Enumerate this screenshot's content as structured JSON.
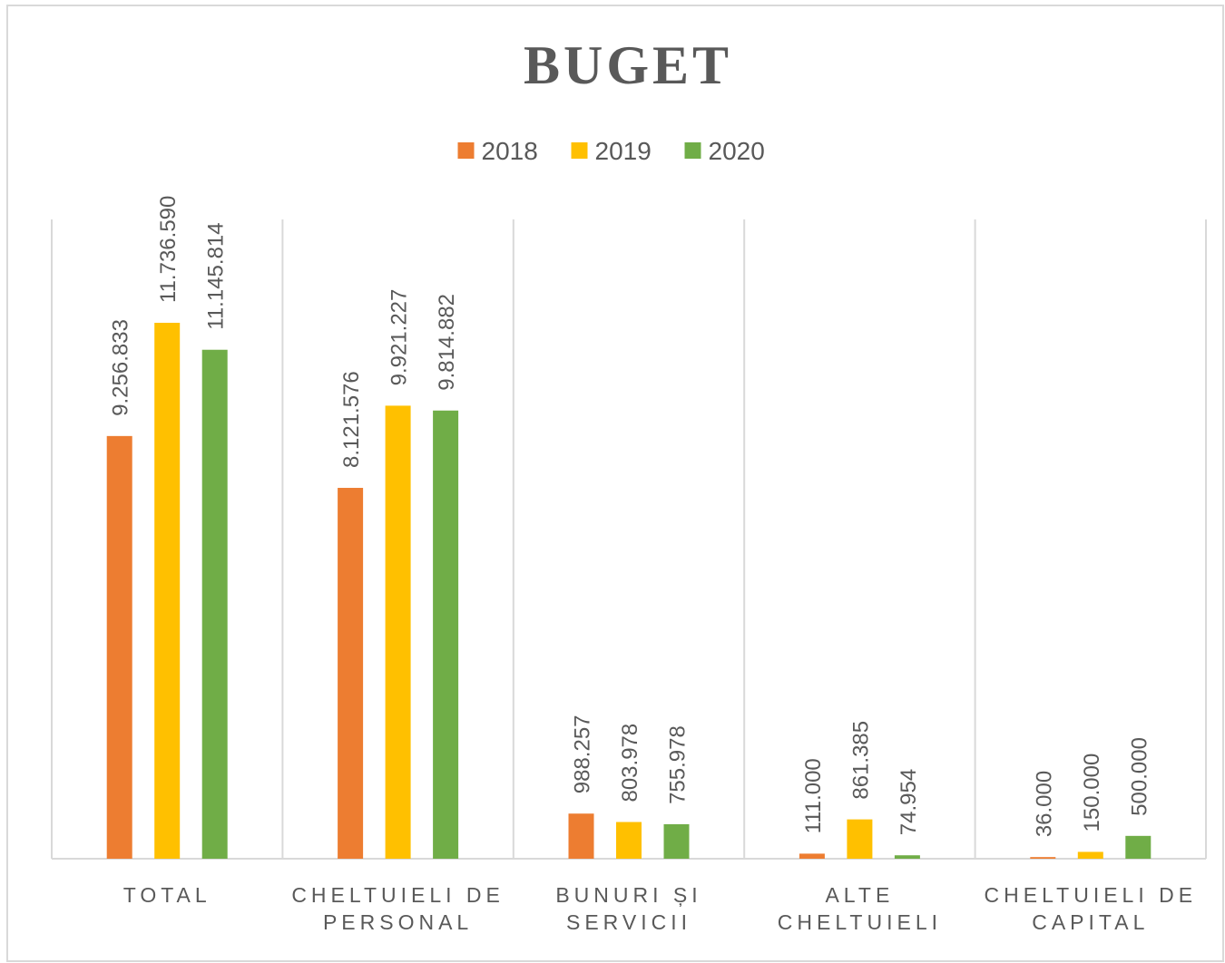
{
  "chart_data": {
    "type": "bar",
    "title": "BUGET",
    "categories": [
      "TOTAL",
      "CHELTUIELI DE PERSONAL",
      "BUNURI ȘI SERVICII",
      "ALTE CHELTUIELI",
      "CHELTUIELI DE CAPITAL"
    ],
    "series": [
      {
        "name": "2018",
        "color": "#ed7d31",
        "values": [
          9256833,
          8121576,
          988257,
          111000,
          36000
        ],
        "value_labels": [
          "9.256.833",
          "8.121.576",
          "988.257",
          "111.000",
          "36.000"
        ]
      },
      {
        "name": "2019",
        "color": "#ffc000",
        "values": [
          11736590,
          9921227,
          803978,
          861385,
          150000
        ],
        "value_labels": [
          "11.736.590",
          "9.921.227",
          "803.978",
          "861.385",
          "150.000"
        ]
      },
      {
        "name": "2020",
        "color": "#70ad47",
        "values": [
          11145814,
          9814882,
          755978,
          74954,
          500000
        ],
        "value_labels": [
          "11.145.814",
          "9.814.882",
          "755.978",
          "74.954",
          "500.000"
        ]
      }
    ],
    "ylim": [
      0,
      14000000
    ],
    "legend": "top"
  }
}
